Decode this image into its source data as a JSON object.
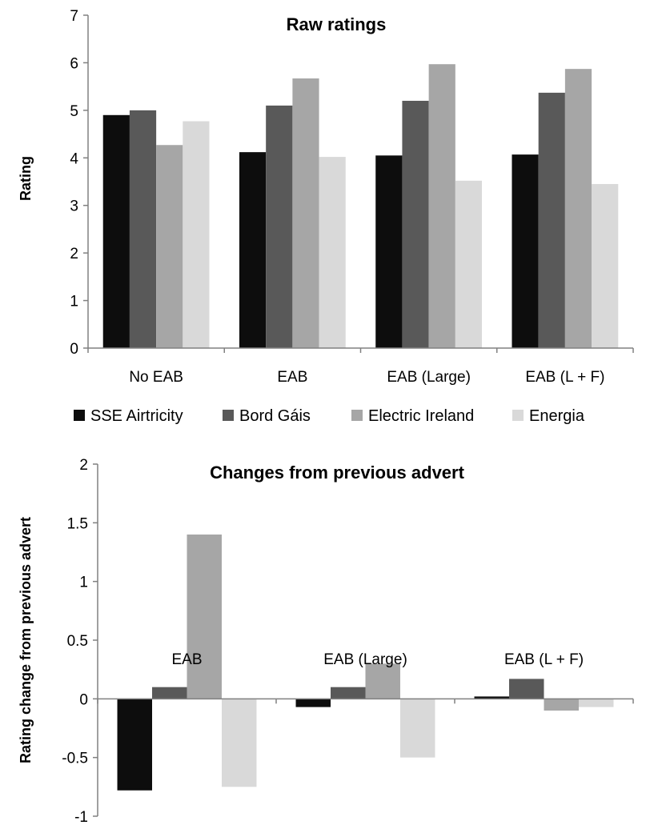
{
  "colors": {
    "SSE Airtricity": "#0d0d0d",
    "Bord Gáis": "#595959",
    "Electric Ireland": "#a6a6a6",
    "Energia": "#d9d9d9"
  },
  "legend": {
    "entries": [
      "SSE Airtricity",
      "Bord Gáis",
      "Electric Ireland",
      "Energia"
    ]
  },
  "chart_data": [
    {
      "type": "bar",
      "title": "Raw ratings",
      "xlabel": "",
      "ylabel": "Rating",
      "ylim": [
        0,
        7
      ],
      "yticks": [
        "0",
        "1",
        "2",
        "3",
        "4",
        "5",
        "6",
        "7"
      ],
      "grid": false,
      "categories": [
        "No EAB",
        "EAB",
        "EAB (Large)",
        "EAB (L + F)"
      ],
      "series": [
        {
          "name": "SSE Airtricity",
          "values": [
            4.9,
            4.12,
            4.05,
            4.07
          ]
        },
        {
          "name": "Bord Gáis",
          "values": [
            5.0,
            5.1,
            5.2,
            5.37
          ]
        },
        {
          "name": "Electric Ireland",
          "values": [
            4.27,
            5.67,
            5.97,
            5.87
          ]
        },
        {
          "name": "Energia",
          "values": [
            4.77,
            4.02,
            3.52,
            3.45
          ]
        }
      ],
      "legend_position": "bottom"
    },
    {
      "type": "bar",
      "title": "Changes from previous advert",
      "xlabel": "",
      "ylabel": "Rating change from previous advert",
      "ylim": [
        -1,
        2
      ],
      "yticks": [
        "-1",
        "-0.5",
        "0",
        "0.5",
        "1",
        "1.5",
        "2"
      ],
      "grid": false,
      "categories": [
        "EAB",
        "EAB (Large)",
        "EAB (L + F)"
      ],
      "series": [
        {
          "name": "SSE Airtricity",
          "values": [
            -0.78,
            -0.07,
            0.02
          ]
        },
        {
          "name": "Bord Gáis",
          "values": [
            0.1,
            0.1,
            0.17
          ]
        },
        {
          "name": "Electric Ireland",
          "values": [
            1.4,
            0.3,
            -0.1
          ]
        },
        {
          "name": "Energia",
          "values": [
            -0.75,
            -0.5,
            -0.07
          ]
        }
      ]
    }
  ]
}
